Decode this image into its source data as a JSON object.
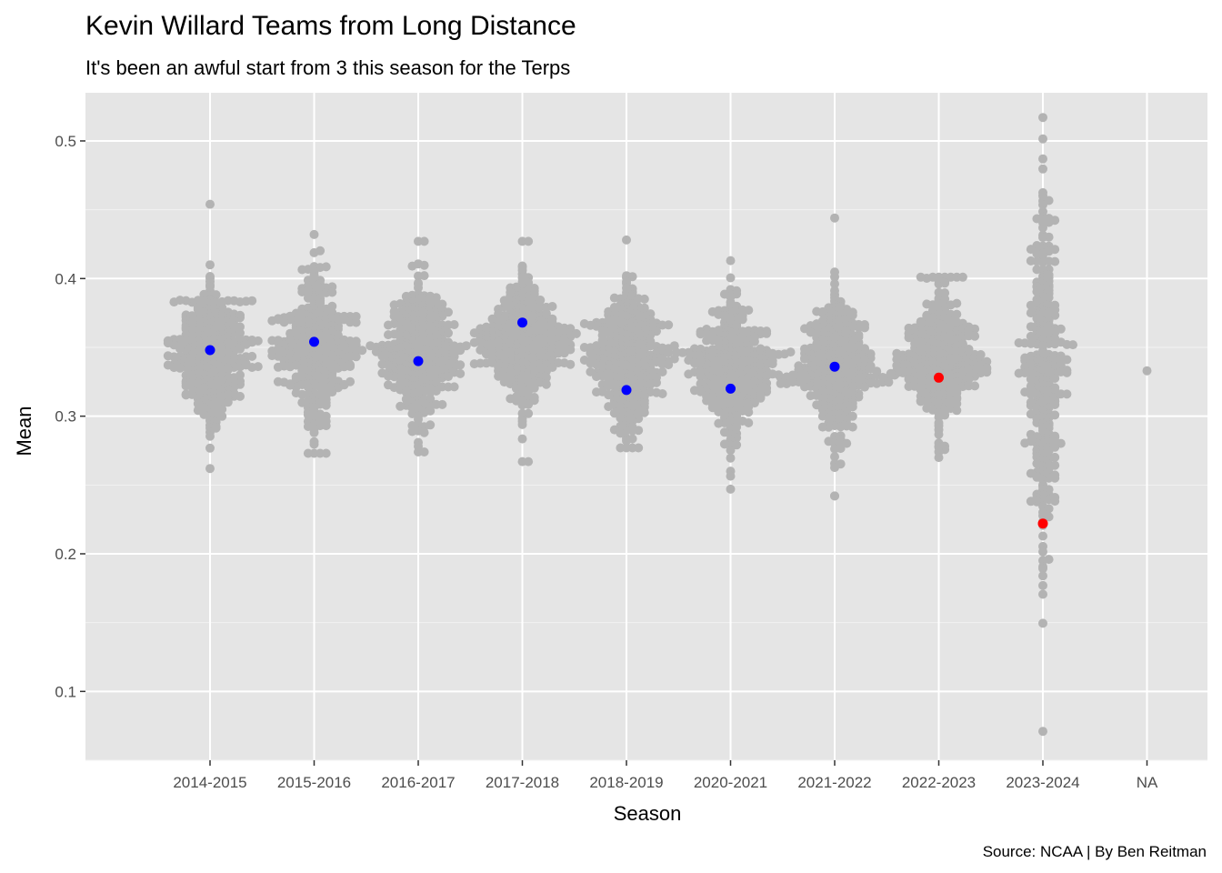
{
  "chart_data": {
    "type": "scatter",
    "subtype": "beeswarm",
    "title": "Kevin Willard Teams from Long Distance",
    "subtitle": "It's been an awful start from 3 this season for the Terps",
    "xlabel": "Season",
    "ylabel": "Mean",
    "caption": "Source: NCAA | By Ben Reitman",
    "categories": [
      "2014-2015",
      "2015-2016",
      "2016-2017",
      "2017-2018",
      "2018-2019",
      "2020-2021",
      "2021-2022",
      "2022-2023",
      "2023-2024",
      "NA"
    ],
    "y_ticks": [
      0.1,
      0.2,
      0.3,
      0.4,
      0.5
    ],
    "ylim": [
      0.05,
      0.535
    ],
    "grid": true,
    "background_color": "#e5e5e5",
    "colors": {
      "all_teams": "#b3b3b3",
      "willard_other": "#0000ff",
      "maryland": "#ff0000"
    },
    "distributions": [
      {
        "season": "2014-2015",
        "center": 0.345,
        "spread": 0.026,
        "min": 0.262,
        "max": 0.454,
        "count": 340
      },
      {
        "season": "2015-2016",
        "center": 0.348,
        "spread": 0.026,
        "min": 0.273,
        "max": 0.432,
        "count": 340
      },
      {
        "season": "2016-2017",
        "center": 0.347,
        "spread": 0.026,
        "min": 0.274,
        "max": 0.427,
        "count": 340
      },
      {
        "season": "2017-2018",
        "center": 0.352,
        "spread": 0.024,
        "min": 0.267,
        "max": 0.427,
        "count": 340
      },
      {
        "season": "2018-2019",
        "center": 0.34,
        "spread": 0.026,
        "min": 0.277,
        "max": 0.428,
        "count": 340
      },
      {
        "season": "2020-2021",
        "center": 0.335,
        "spread": 0.025,
        "min": 0.247,
        "max": 0.413,
        "count": 340
      },
      {
        "season": "2021-2022",
        "center": 0.336,
        "spread": 0.025,
        "min": 0.242,
        "max": 0.444,
        "count": 340
      },
      {
        "season": "2022-2023",
        "center": 0.34,
        "spread": 0.025,
        "min": 0.27,
        "max": 0.401,
        "count": 340
      },
      {
        "season": "2023-2024",
        "center": 0.33,
        "spread": 0.06,
        "min": 0.071,
        "max": 0.517,
        "count": 320
      },
      {
        "season": "NA",
        "center": 0.333,
        "spread": 0.0,
        "min": 0.333,
        "max": 0.333,
        "count": 1
      }
    ],
    "highlight_points": [
      {
        "season": "2014-2015",
        "value": 0.348,
        "group": "willard_other"
      },
      {
        "season": "2015-2016",
        "value": 0.354,
        "group": "willard_other"
      },
      {
        "season": "2016-2017",
        "value": 0.34,
        "group": "willard_other"
      },
      {
        "season": "2017-2018",
        "value": 0.368,
        "group": "willard_other"
      },
      {
        "season": "2018-2019",
        "value": 0.319,
        "group": "willard_other"
      },
      {
        "season": "2020-2021",
        "value": 0.32,
        "group": "willard_other"
      },
      {
        "season": "2021-2022",
        "value": 0.336,
        "group": "willard_other"
      },
      {
        "season": "2022-2023",
        "value": 0.328,
        "group": "maryland"
      },
      {
        "season": "2023-2024",
        "value": 0.222,
        "group": "maryland"
      }
    ]
  }
}
